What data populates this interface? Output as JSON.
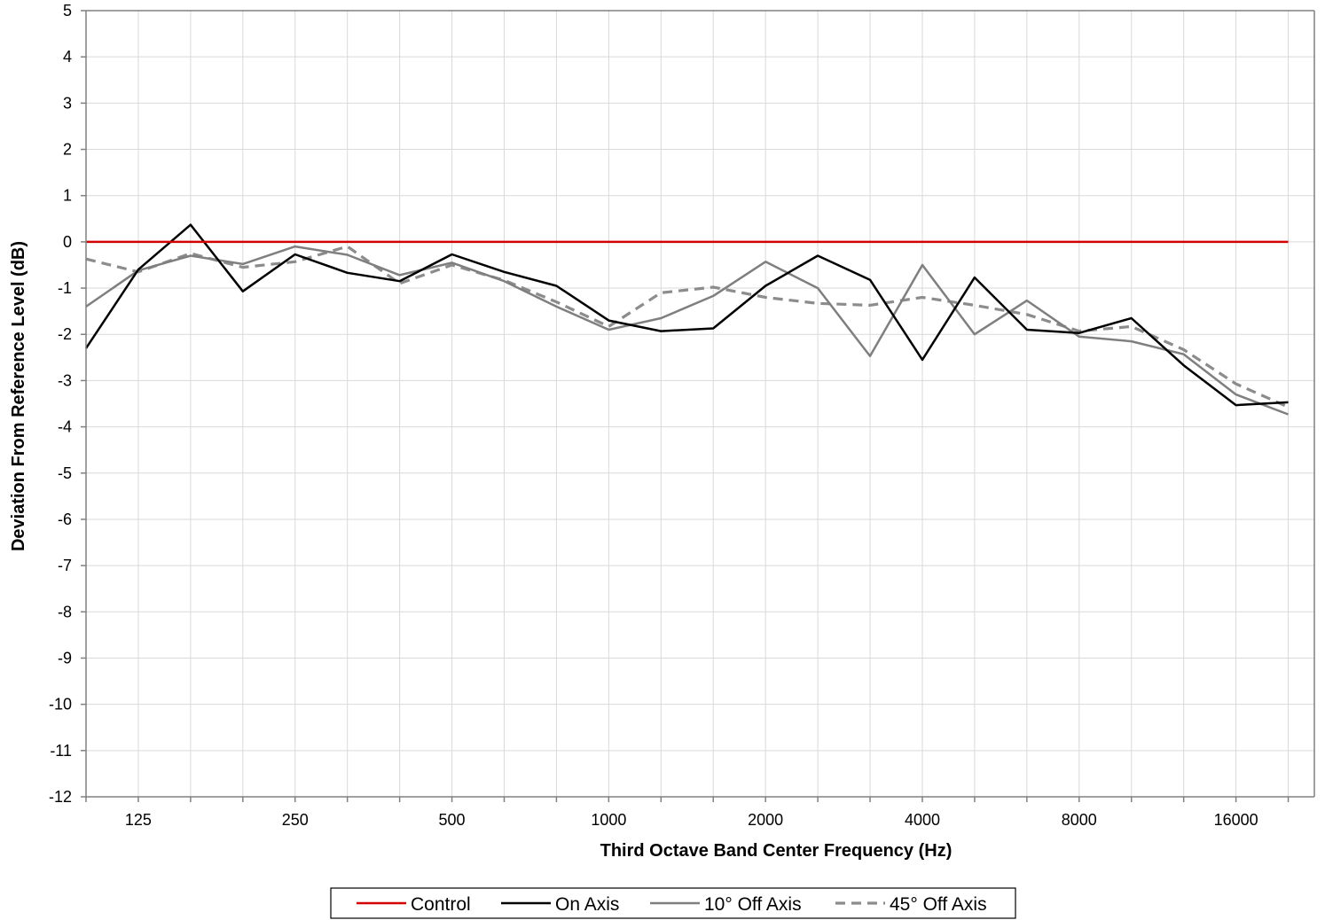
{
  "chart_data": {
    "type": "line",
    "title": "",
    "xlabel": "Third Octave Band Center Frequency (Hz)",
    "ylabel": "Deviation From Reference Level (dB)",
    "x_scale": "log",
    "x_tick_labels": [
      "125",
      "250",
      "500",
      "1000",
      "2000",
      "4000",
      "8000",
      "16000"
    ],
    "ylim": [
      -12,
      5
    ],
    "y_ticks": [
      5,
      4,
      3,
      2,
      1,
      0,
      -1,
      -2,
      -3,
      -4,
      -5,
      -6,
      -7,
      -8,
      -9,
      -10,
      -11,
      -12
    ],
    "grid": true,
    "legend_position": "bottom",
    "x": [
      100,
      125,
      160,
      200,
      250,
      315,
      400,
      500,
      630,
      800,
      1000,
      1250,
      1600,
      2000,
      2500,
      3150,
      4000,
      5000,
      6300,
      8000,
      10000,
      12500,
      16000,
      20000
    ],
    "series": [
      {
        "name": "Control",
        "color": "#d40000",
        "dash": "solid",
        "values": [
          0,
          0,
          0,
          0,
          0,
          0,
          0,
          0,
          0,
          0,
          0,
          0,
          0,
          0,
          0,
          0,
          0,
          0,
          0,
          0,
          0,
          0,
          0,
          0
        ]
      },
      {
        "name": "On Axis",
        "color": "#000000",
        "dash": "solid",
        "values": [
          -2.3,
          -0.6,
          0.37,
          -1.07,
          -0.27,
          -0.67,
          -0.85,
          -0.27,
          -0.65,
          -0.95,
          -1.7,
          -1.93,
          -1.87,
          -0.95,
          -0.3,
          -0.82,
          -2.55,
          -0.77,
          -1.9,
          -1.97,
          -1.65,
          -2.67,
          -3.53,
          -3.47
        ]
      },
      {
        "name": "10° Off Axis",
        "color": "#7f7f7f",
        "dash": "solid",
        "values": [
          -1.4,
          -0.62,
          -0.3,
          -0.48,
          -0.1,
          -0.28,
          -0.72,
          -0.45,
          -0.85,
          -1.4,
          -1.9,
          -1.65,
          -1.17,
          -0.43,
          -1.0,
          -2.47,
          -0.5,
          -2.0,
          -1.27,
          -2.05,
          -2.15,
          -2.43,
          -3.3,
          -3.73
        ]
      },
      {
        "name": "45° Off Axis",
        "color": "#8c8c8c",
        "dash": "dashed",
        "values": [
          -0.37,
          -0.65,
          -0.25,
          -0.55,
          -0.43,
          -0.1,
          -0.9,
          -0.5,
          -0.83,
          -1.3,
          -1.83,
          -1.1,
          -0.98,
          -1.2,
          -1.33,
          -1.37,
          -1.2,
          -1.37,
          -1.57,
          -1.93,
          -1.83,
          -2.33,
          -3.07,
          -3.57
        ]
      }
    ]
  }
}
